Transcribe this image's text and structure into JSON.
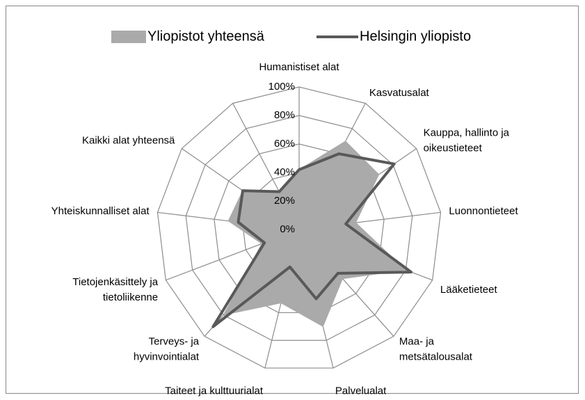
{
  "chart_data": {
    "type": "radar",
    "categories": [
      "Humanistiset alat",
      "Kasvatusalat",
      "Kauppa, hallinto ja\noikeustieteet",
      "Luonnontieteet",
      "Lääketieteet",
      "Maa- ja\nmetsätalousalat",
      "Palvelualat",
      "Taiteet ja kulttuurialat",
      "Terveys- ja\nhyvinvointialat",
      "Tietojenkäsittely ja\ntietoliikenne",
      "Yhteiskunnalliset alat",
      "Kaikki alat yhteensä",
      null
    ],
    "series": [
      {
        "name": "Yliopistot yhteensä",
        "color": "#aaaaaa",
        "fill": true,
        "values": [
          42,
          70,
          68,
          40,
          80,
          46,
          70,
          53,
          80,
          28,
          50,
          48,
          30
        ]
      },
      {
        "name": "Helsingin yliopisto",
        "color": "#595959",
        "fill": false,
        "values": [
          42,
          60,
          81,
          33,
          84,
          41,
          50,
          27,
          91,
          26,
          43,
          48,
          30
        ]
      }
    ],
    "ylim": [
      0,
      100
    ],
    "yticks": [
      {
        "value": 0,
        "label": "0%"
      },
      {
        "value": 20,
        "label": "20%"
      },
      {
        "value": 40,
        "label": "40%"
      },
      {
        "value": 60,
        "label": "60%"
      },
      {
        "value": 80,
        "label": "80%"
      },
      {
        "value": 100,
        "label": "100%"
      }
    ],
    "grid": true,
    "legend": "top"
  }
}
